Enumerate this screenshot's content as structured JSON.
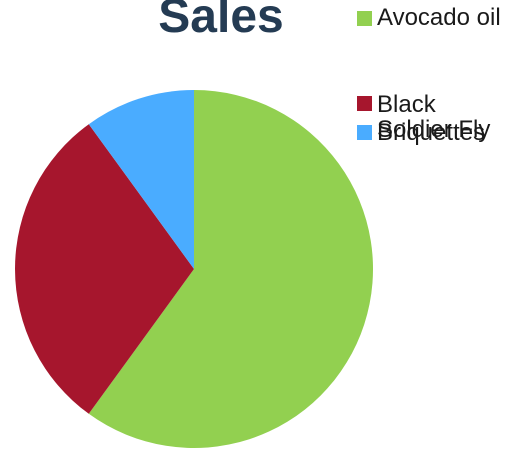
{
  "chart_data": {
    "type": "pie",
    "title": "Sales",
    "slices": [
      {
        "label": "Avocado oil",
        "value": 60,
        "color": "#92d050"
      },
      {
        "label": "Black Soldier Fly",
        "value": 30,
        "color": "#a6162d"
      },
      {
        "label": "Briquettes",
        "value": 10,
        "color": "#4aacff"
      }
    ],
    "start_angle_deg": 0,
    "direction": "clockwise",
    "legend_position": "top-right"
  }
}
